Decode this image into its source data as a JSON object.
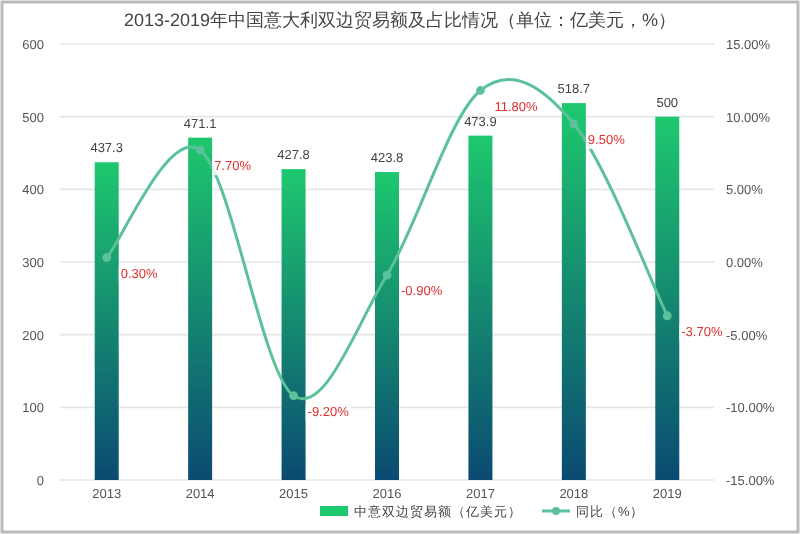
{
  "chart_data": {
    "type": "bar",
    "title": "2013-2019年中国意大利双边贸易额及占比情况（单位：亿美元，%）",
    "categories": [
      "2013",
      "2014",
      "2015",
      "2016",
      "2017",
      "2018",
      "2019"
    ],
    "series": [
      {
        "name": "中意双边贸易额（亿美元）",
        "color": "#1ec86e",
        "values": [
          437.3,
          471.1,
          427.8,
          423.8,
          473.9,
          518.7,
          500
        ],
        "value_labels": [
          "437.3",
          "471.1",
          "427.8",
          "423.8",
          "473.9",
          "518.7",
          "500"
        ]
      },
      {
        "name": "同比（%）",
        "type": "line",
        "axis": "y2",
        "color": "#5cc19a",
        "marker": "circle",
        "values": [
          0.3,
          7.7,
          -9.2,
          -0.9,
          11.8,
          9.5,
          -3.7
        ],
        "value_labels": [
          "0.30%",
          "7.70%",
          "-9.20%",
          "-0.90%",
          "11.80%",
          "9.50%",
          "-3.70%"
        ]
      }
    ],
    "ylim": [
      0,
      600
    ],
    "yticks": [
      0,
      100,
      200,
      300,
      400,
      500,
      600
    ],
    "y2lim": [
      -15,
      15
    ],
    "y2ticks": [
      {
        "value": -15,
        "label": "-15.00%"
      },
      {
        "value": -10,
        "label": "-10.00%"
      },
      {
        "value": -5,
        "label": "-5.00%"
      },
      {
        "value": 0,
        "label": "0.00%"
      },
      {
        "value": 5,
        "label": "5.00%"
      },
      {
        "value": 10,
        "label": "10.00%"
      },
      {
        "value": 15,
        "label": "15.00%"
      }
    ],
    "grid": "y",
    "legend": "bottom"
  }
}
